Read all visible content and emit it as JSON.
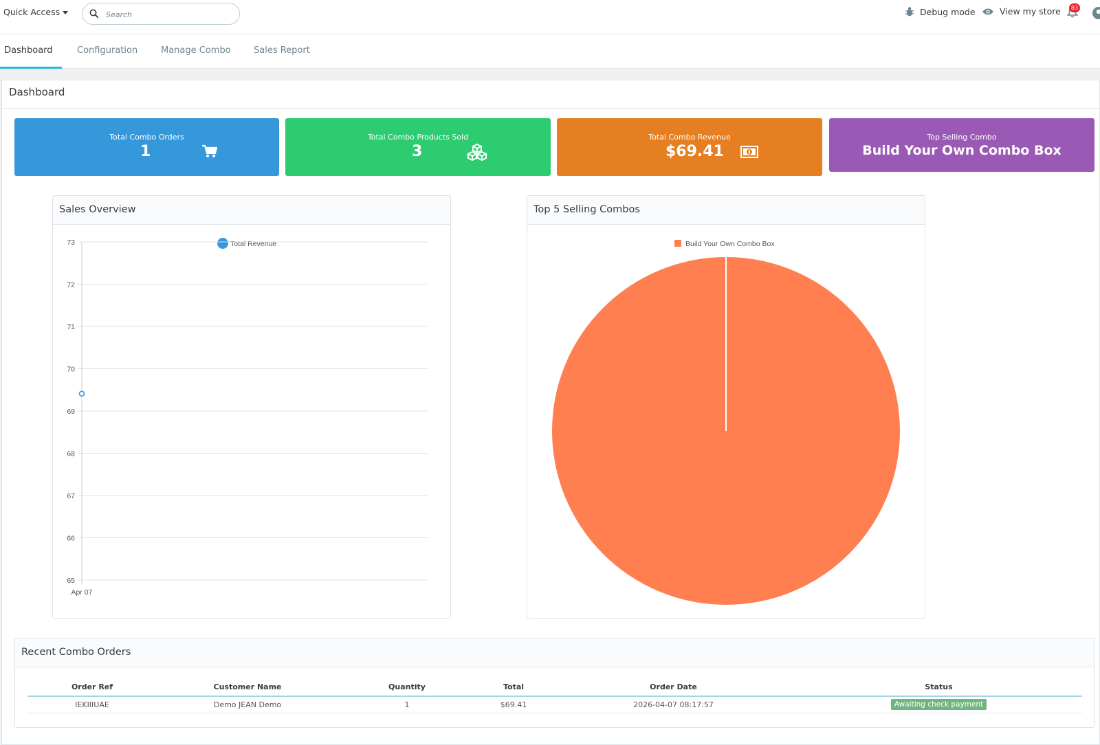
{
  "header": {
    "quick_access_label": "Quick Access",
    "search_placeholder": "Search",
    "debug_label": "Debug mode",
    "view_store_label": "View my store",
    "notification_count": "83"
  },
  "tabs": [
    {
      "label": "Dashboard",
      "active": true
    },
    {
      "label": "Configuration",
      "active": false
    },
    {
      "label": "Manage Combo",
      "active": false
    },
    {
      "label": "Sales Report",
      "active": false
    }
  ],
  "page_title": "Dashboard",
  "kpis": {
    "orders": {
      "label": "Total Combo Orders",
      "value": "1",
      "icon": "cart-icon",
      "color": "#3498db"
    },
    "products": {
      "label": "Total Combo Products Sold",
      "value": "3",
      "icon": "cubes-icon",
      "color": "#2ecc71"
    },
    "revenue": {
      "label": "Total Combo Revenue",
      "value": "$69.41",
      "icon": "money-icon",
      "color": "#e67e22"
    },
    "top": {
      "label": "Top Selling Combo",
      "value": "Build Your Own Combo Box",
      "color": "#9b59b6"
    }
  },
  "sales_panel": {
    "title": "Sales Overview"
  },
  "top5_panel": {
    "title": "Top 5 Selling Combos"
  },
  "chart_data": [
    {
      "type": "line",
      "x": [
        "Apr 07"
      ],
      "series": [
        {
          "name": "Total Revenue",
          "values": [
            69.41
          ],
          "color": "#3498db"
        }
      ],
      "ylim": [
        65,
        73
      ],
      "yticks": [
        65,
        66,
        67,
        68,
        69,
        70,
        71,
        72,
        73
      ],
      "grid": true,
      "legend": "top-center"
    },
    {
      "type": "pie",
      "categories": [
        "Build Your Own Combo Box"
      ],
      "values": [
        3
      ],
      "colors": [
        "#ff7f50"
      ],
      "legend": "top-center"
    }
  ],
  "orders_panel": {
    "title": "Recent Combo Orders",
    "columns": [
      "Order Ref",
      "Customer Name",
      "Quantity",
      "Total",
      "Order Date",
      "Status"
    ],
    "rows": [
      {
        "ref": "IEKIIIUAE",
        "customer": "Demo JEAN Demo",
        "quantity": "1",
        "total": "$69.41",
        "date": "2026-04-07 08:17:57",
        "status": "Awaiting check payment",
        "status_color": "#70b580"
      }
    ]
  }
}
